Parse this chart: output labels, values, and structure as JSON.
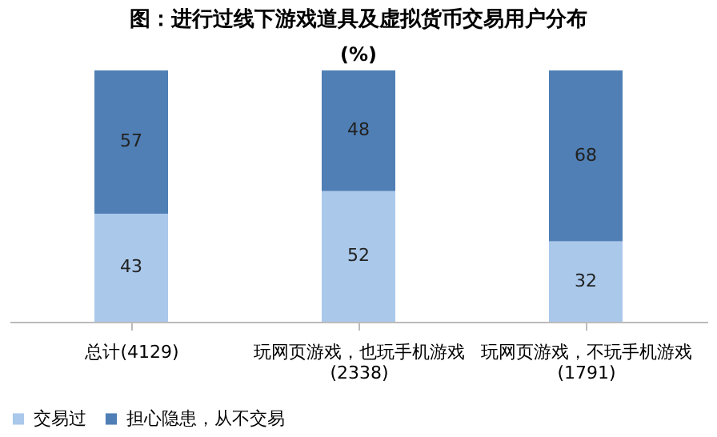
{
  "chart_data": {
    "type": "bar",
    "title": "图：进行过线下游戏道具及虚拟货币交易用户分布",
    "subtitle": "(%)",
    "categories": [
      "总计(4129)",
      "玩网页游戏，也玩手机游戏(2338)",
      "玩网页游戏，不玩手机游戏(1791)"
    ],
    "stacked": true,
    "data_labels": true,
    "legend": "bottom",
    "grid": false,
    "series": [
      {
        "name": "交易过",
        "color": "#a9c8ea",
        "values": [
          43,
          52,
          32
        ]
      },
      {
        "name": "担心隐患，从不交易",
        "color": "#4f7fb5",
        "values": [
          57,
          48,
          68
        ]
      }
    ]
  }
}
